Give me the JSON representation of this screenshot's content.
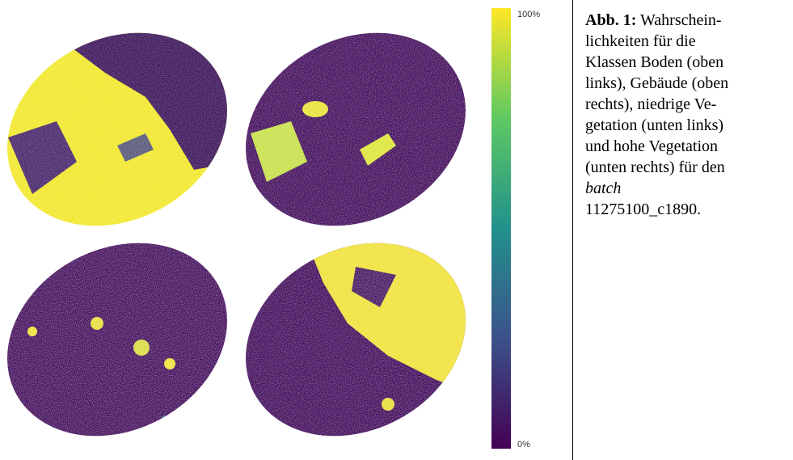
{
  "colorbar": {
    "max_label": "100%",
    "min_label": "0%"
  },
  "caption": {
    "label": "Abb. 1:",
    "lines": [
      "Wahrschein-",
      "lichkeiten für die",
      "Klassen Boden (oben",
      "links), Gebäude (oben",
      "rechts), niedrige Ve-",
      "getation (unten links)",
      "und hohe Vegetation",
      "(unten rechts) für den",
      "batch",
      "11275100_c1890."
    ]
  }
}
